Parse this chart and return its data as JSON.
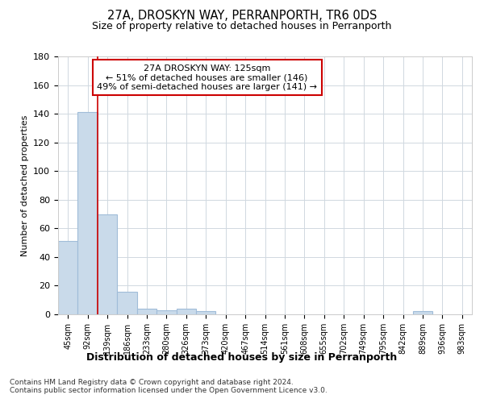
{
  "title1": "27A, DROSKYN WAY, PERRANPORTH, TR6 0DS",
  "title2": "Size of property relative to detached houses in Perranporth",
  "xlabel": "Distribution of detached houses by size in Perranporth",
  "ylabel": "Number of detached properties",
  "bar_labels": [
    "45sqm",
    "92sqm",
    "139sqm",
    "186sqm",
    "233sqm",
    "280sqm",
    "326sqm",
    "373sqm",
    "420sqm",
    "467sqm",
    "514sqm",
    "561sqm",
    "608sqm",
    "655sqm",
    "702sqm",
    "749sqm",
    "795sqm",
    "842sqm",
    "889sqm",
    "936sqm",
    "983sqm"
  ],
  "bar_values": [
    51,
    141,
    70,
    16,
    4,
    3,
    4,
    2,
    0,
    0,
    0,
    0,
    0,
    0,
    0,
    0,
    0,
    0,
    2,
    0,
    0
  ],
  "bar_color": "#c9daea",
  "bar_edge_color": "#a0bcd8",
  "vline_x": 1.5,
  "vline_color": "#cc0000",
  "ylim": [
    0,
    180
  ],
  "yticks": [
    0,
    20,
    40,
    60,
    80,
    100,
    120,
    140,
    160,
    180
  ],
  "annotation_box_text": "27A DROSKYN WAY: 125sqm\n← 51% of detached houses are smaller (146)\n49% of semi-detached houses are larger (141) →",
  "footer": "Contains HM Land Registry data © Crown copyright and database right 2024.\nContains public sector information licensed under the Open Government Licence v3.0.",
  "bg_color": "#ffffff",
  "grid_color": "#d0d8e0"
}
